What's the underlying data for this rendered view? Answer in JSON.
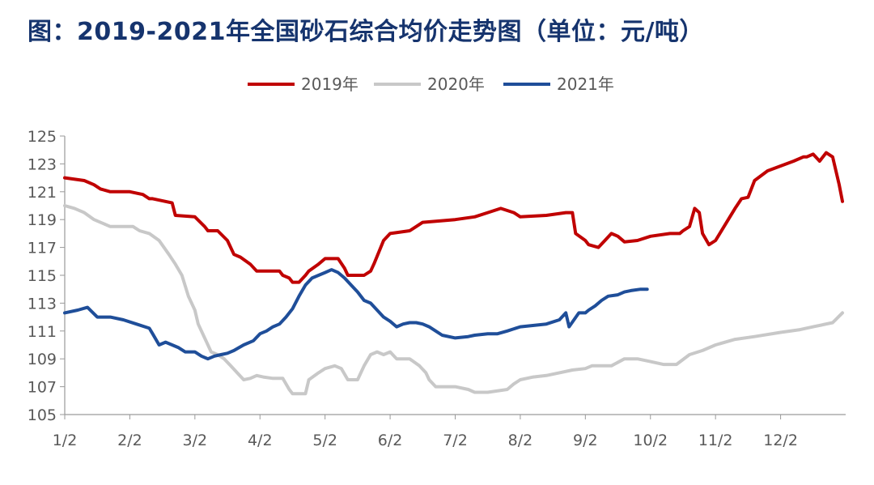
{
  "chart_data": {
    "type": "line",
    "title": "图：2019-2021年全国砂石综合均价走势图（单位：元/吨）",
    "xlabel": "",
    "ylabel": "",
    "ylim": [
      105,
      125
    ],
    "y_ticks": [
      "125",
      "123",
      "121",
      "119",
      "117",
      "115",
      "113",
      "111",
      "109",
      "107",
      "105"
    ],
    "x_ticks": [
      "1/2",
      "2/2",
      "3/2",
      "4/2",
      "5/2",
      "6/2",
      "7/2",
      "8/2",
      "9/2",
      "10/2",
      "11/2",
      "12/2"
    ],
    "x_tick_positions": [
      0,
      1,
      2,
      3,
      4,
      5,
      6,
      7,
      8,
      9,
      10,
      11
    ],
    "xlim": [
      0,
      12
    ],
    "grid": false,
    "legend_position": "top-center",
    "series": [
      {
        "name": "2019年",
        "color": "#c00000",
        "x": [
          0,
          0.3,
          0.45,
          0.55,
          0.7,
          1.0,
          1.2,
          1.3,
          1.35,
          1.65,
          1.7,
          2.0,
          2.15,
          2.2,
          2.35,
          2.5,
          2.6,
          2.7,
          2.85,
          2.95,
          3.0,
          3.3,
          3.35,
          3.45,
          3.5,
          3.6,
          3.7,
          3.75,
          3.9,
          4.0,
          4.2,
          4.3,
          4.35,
          4.6,
          4.7,
          4.75,
          4.9,
          5.0,
          5.3,
          5.4,
          5.5,
          6.0,
          6.3,
          6.5,
          6.7,
          6.9,
          7.0,
          7.4,
          7.7,
          7.8,
          7.85,
          8.0,
          8.05,
          8.2,
          8.3,
          8.4,
          8.5,
          8.6,
          8.8,
          9.0,
          9.3,
          9.45,
          9.5,
          9.6,
          9.68,
          9.75,
          9.8,
          9.9,
          10.0,
          10.3,
          10.4,
          10.5,
          10.6,
          10.8,
          11.2,
          11.35,
          11.4,
          11.5,
          11.6,
          11.7,
          11.8,
          11.9,
          11.95
        ],
        "y": [
          122,
          121.8,
          121.5,
          121.2,
          121,
          121,
          120.8,
          120.5,
          120.5,
          120.2,
          119.3,
          119.2,
          118.5,
          118.2,
          118.2,
          117.5,
          116.5,
          116.3,
          115.8,
          115.3,
          115.3,
          115.3,
          115.0,
          114.8,
          114.5,
          114.5,
          115.0,
          115.3,
          115.8,
          116.2,
          116.2,
          115.5,
          115.0,
          115.0,
          115.3,
          115.8,
          117.5,
          118.0,
          118.2,
          118.5,
          118.8,
          119.0,
          119.2,
          119.5,
          119.8,
          119.5,
          119.2,
          119.3,
          119.5,
          119.5,
          118.0,
          117.5,
          117.2,
          117.0,
          117.5,
          118.0,
          117.8,
          117.4,
          117.5,
          117.8,
          118.0,
          118.0,
          118.2,
          118.5,
          119.8,
          119.5,
          118.0,
          117.2,
          117.5,
          119.8,
          120.5,
          120.6,
          121.8,
          122.5,
          123.2,
          123.5,
          123.5,
          123.7,
          123.2,
          123.8,
          123.5,
          121.5,
          120.3
        ]
      },
      {
        "name": "2020年",
        "color": "#c8c8c8",
        "x": [
          0,
          0.15,
          0.3,
          0.45,
          0.7,
          0.9,
          1.05,
          1.15,
          1.3,
          1.45,
          1.6,
          1.7,
          1.8,
          1.9,
          2.0,
          2.05,
          2.15,
          2.25,
          2.35,
          2.45,
          2.55,
          2.65,
          2.75,
          2.85,
          2.95,
          3.05,
          3.2,
          3.35,
          3.45,
          3.5,
          3.6,
          3.7,
          3.75,
          3.9,
          4.0,
          4.15,
          4.25,
          4.35,
          4.5,
          4.6,
          4.7,
          4.8,
          4.9,
          5.0,
          5.1,
          5.3,
          5.45,
          5.55,
          5.6,
          5.7,
          5.8,
          6.0,
          6.2,
          6.3,
          6.5,
          6.8,
          6.9,
          7.0,
          7.2,
          7.4,
          7.6,
          7.8,
          8.0,
          8.1,
          8.2,
          8.4,
          8.6,
          8.8,
          9.0,
          9.2,
          9.4,
          9.6,
          9.8,
          10.0,
          10.3,
          10.6,
          11.0,
          11.3,
          11.5,
          11.8,
          11.95
        ],
        "y": [
          120,
          119.8,
          119.5,
          119.0,
          118.5,
          118.5,
          118.5,
          118.2,
          118.0,
          117.5,
          116.5,
          115.8,
          115.0,
          113.5,
          112.5,
          111.5,
          110.5,
          109.5,
          109.3,
          109.0,
          108.5,
          108.0,
          107.5,
          107.6,
          107.8,
          107.7,
          107.6,
          107.6,
          106.8,
          106.5,
          106.5,
          106.5,
          107.5,
          108.0,
          108.3,
          108.5,
          108.3,
          107.5,
          107.5,
          108.5,
          109.3,
          109.5,
          109.3,
          109.5,
          109.0,
          109.0,
          108.5,
          108.0,
          107.5,
          107.0,
          107.0,
          107.0,
          106.8,
          106.6,
          106.6,
          106.8,
          107.2,
          107.5,
          107.7,
          107.8,
          108.0,
          108.2,
          108.3,
          108.5,
          108.5,
          108.5,
          109.0,
          109.0,
          108.8,
          108.6,
          108.6,
          109.3,
          109.6,
          110.0,
          110.4,
          110.6,
          110.9,
          111.1,
          111.3,
          111.6,
          112.3
        ]
      },
      {
        "name": "2021年",
        "color": "#1f4e99",
        "x": [
          0,
          0.2,
          0.35,
          0.5,
          0.7,
          0.9,
          1.1,
          1.3,
          1.35,
          1.45,
          1.55,
          1.65,
          1.75,
          1.85,
          2.0,
          2.1,
          2.2,
          2.3,
          2.4,
          2.5,
          2.6,
          2.75,
          2.9,
          3.0,
          3.1,
          3.2,
          3.3,
          3.4,
          3.5,
          3.6,
          3.7,
          3.8,
          3.9,
          4.0,
          4.1,
          4.2,
          4.3,
          4.4,
          4.5,
          4.6,
          4.7,
          4.8,
          4.9,
          5.0,
          5.1,
          5.2,
          5.3,
          5.4,
          5.5,
          5.6,
          5.7,
          5.8,
          6.0,
          6.2,
          6.3,
          6.5,
          6.65,
          6.8,
          7.0,
          7.4,
          7.6,
          7.7,
          7.75,
          7.9,
          8.0,
          8.05,
          8.15,
          8.25,
          8.35,
          8.5,
          8.6,
          8.7,
          8.85,
          8.95
        ],
        "y": [
          112.3,
          112.5,
          112.7,
          112.0,
          112.0,
          111.8,
          111.5,
          111.2,
          110.8,
          110.0,
          110.2,
          110.0,
          109.8,
          109.5,
          109.5,
          109.2,
          109.0,
          109.2,
          109.3,
          109.4,
          109.6,
          110.0,
          110.3,
          110.8,
          111.0,
          111.3,
          111.5,
          112.0,
          112.6,
          113.5,
          114.3,
          114.8,
          115.0,
          115.2,
          115.4,
          115.2,
          114.8,
          114.3,
          113.8,
          113.2,
          113.0,
          112.5,
          112.0,
          111.7,
          111.3,
          111.5,
          111.6,
          111.6,
          111.5,
          111.3,
          111.0,
          110.7,
          110.5,
          110.6,
          110.7,
          110.8,
          110.8,
          111.0,
          111.3,
          111.5,
          111.8,
          112.3,
          111.3,
          112.3,
          112.3,
          112.5,
          112.8,
          113.2,
          113.5,
          113.6,
          113.8,
          113.9,
          114.0,
          114.0
        ]
      }
    ]
  }
}
